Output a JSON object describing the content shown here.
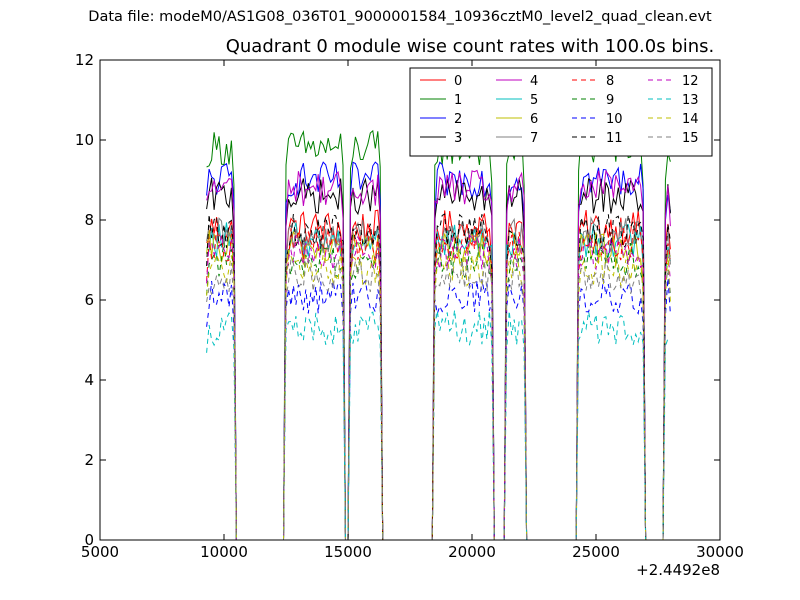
{
  "header": {
    "datafile": "Data file: modeM0/AS1G08_036T01_9000001584_10936cztM0_level2_quad_clean.evt"
  },
  "chart_data": {
    "type": "line",
    "title": "Quadrant 0 module wise count rates with 100.0s bins.",
    "xlabel": "",
    "ylabel": "",
    "x_offset_label": "+2.4492e8",
    "xlim": [
      5000,
      30000
    ],
    "ylim": [
      0,
      12
    ],
    "x_ticks": [
      5000,
      10000,
      15000,
      20000,
      25000,
      30000
    ],
    "y_ticks": [
      0,
      2,
      4,
      6,
      8,
      10,
      12
    ],
    "grid": false,
    "legend_position": "top-right",
    "legend_columns": 4,
    "bin_width": 100,
    "segments": [
      {
        "start": 9300,
        "end": 10400
      },
      {
        "start": 12500,
        "end": 14800
      },
      {
        "start": 15100,
        "end": 16300
      },
      {
        "start": 18500,
        "end": 20800
      },
      {
        "start": 21400,
        "end": 22100
      },
      {
        "start": 24300,
        "end": 26900
      },
      {
        "start": 27800,
        "end": 28000
      }
    ],
    "series": [
      {
        "name": "0",
        "color": "#ff0000",
        "dashed": false,
        "level": 7.8
      },
      {
        "name": "1",
        "color": "#008000",
        "dashed": false,
        "level": 9.8
      },
      {
        "name": "2",
        "color": "#0000ff",
        "dashed": false,
        "level": 9.0
      },
      {
        "name": "3",
        "color": "#000000",
        "dashed": false,
        "level": 8.6
      },
      {
        "name": "4",
        "color": "#bf00bf",
        "dashed": false,
        "level": 8.8
      },
      {
        "name": "5",
        "color": "#00bfbf",
        "dashed": false,
        "level": 7.5
      },
      {
        "name": "6",
        "color": "#bfbf00",
        "dashed": false,
        "level": 7.3
      },
      {
        "name": "7",
        "color": "#808080",
        "dashed": false,
        "level": 7.6
      },
      {
        "name": "8",
        "color": "#ff0000",
        "dashed": true,
        "level": 7.4
      },
      {
        "name": "9",
        "color": "#008000",
        "dashed": true,
        "level": 7.0
      },
      {
        "name": "10",
        "color": "#0000ff",
        "dashed": true,
        "level": 6.1
      },
      {
        "name": "11",
        "color": "#000000",
        "dashed": true,
        "level": 7.7
      },
      {
        "name": "12",
        "color": "#bf00bf",
        "dashed": true,
        "level": 7.2
      },
      {
        "name": "13",
        "color": "#00bfbf",
        "dashed": true,
        "level": 5.3
      },
      {
        "name": "14",
        "color": "#bfbf00",
        "dashed": true,
        "level": 6.8
      },
      {
        "name": "15",
        "color": "#808080",
        "dashed": true,
        "level": 6.6
      }
    ]
  }
}
